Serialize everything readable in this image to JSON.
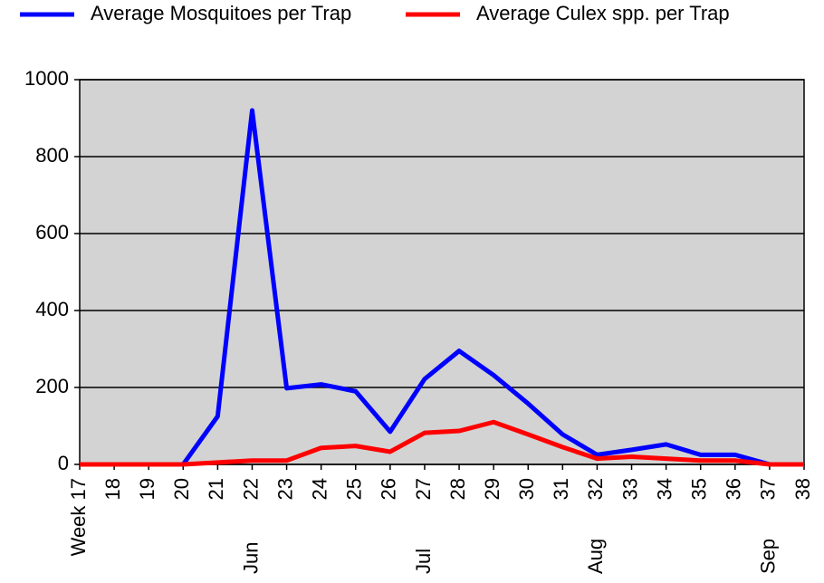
{
  "chart_data": {
    "type": "line",
    "categories": [
      "Week 17",
      "18",
      "19",
      "20",
      "21",
      "22",
      "23",
      "24",
      "25",
      "26",
      "27",
      "28",
      "29",
      "30",
      "31",
      "32",
      "33",
      "34",
      "35",
      "36",
      "37",
      "38"
    ],
    "month_labels": [
      null,
      null,
      null,
      null,
      null,
      "Jun",
      null,
      null,
      null,
      null,
      "Jul",
      null,
      null,
      null,
      null,
      "Aug",
      null,
      null,
      null,
      null,
      "Sep",
      null
    ],
    "series": [
      {
        "name": "Average Mosquitoes per Trap",
        "color": "#0000ff",
        "values": [
          0,
          0,
          0,
          0,
          125,
          920,
          198,
          208,
          190,
          85,
          222,
          295,
          232,
          158,
          78,
          25,
          38,
          52,
          25,
          25,
          0,
          0
        ]
      },
      {
        "name": "Average Culex spp. per Trap",
        "color": "#ff0000",
        "values": [
          0,
          0,
          0,
          0,
          5,
          10,
          10,
          43,
          48,
          33,
          82,
          87,
          110,
          78,
          45,
          15,
          20,
          15,
          10,
          10,
          0,
          0
        ]
      }
    ],
    "ylim": [
      0,
      1000
    ],
    "yticks": [
      0,
      200,
      400,
      600,
      800,
      1000
    ],
    "grid": true,
    "legend": "top"
  }
}
